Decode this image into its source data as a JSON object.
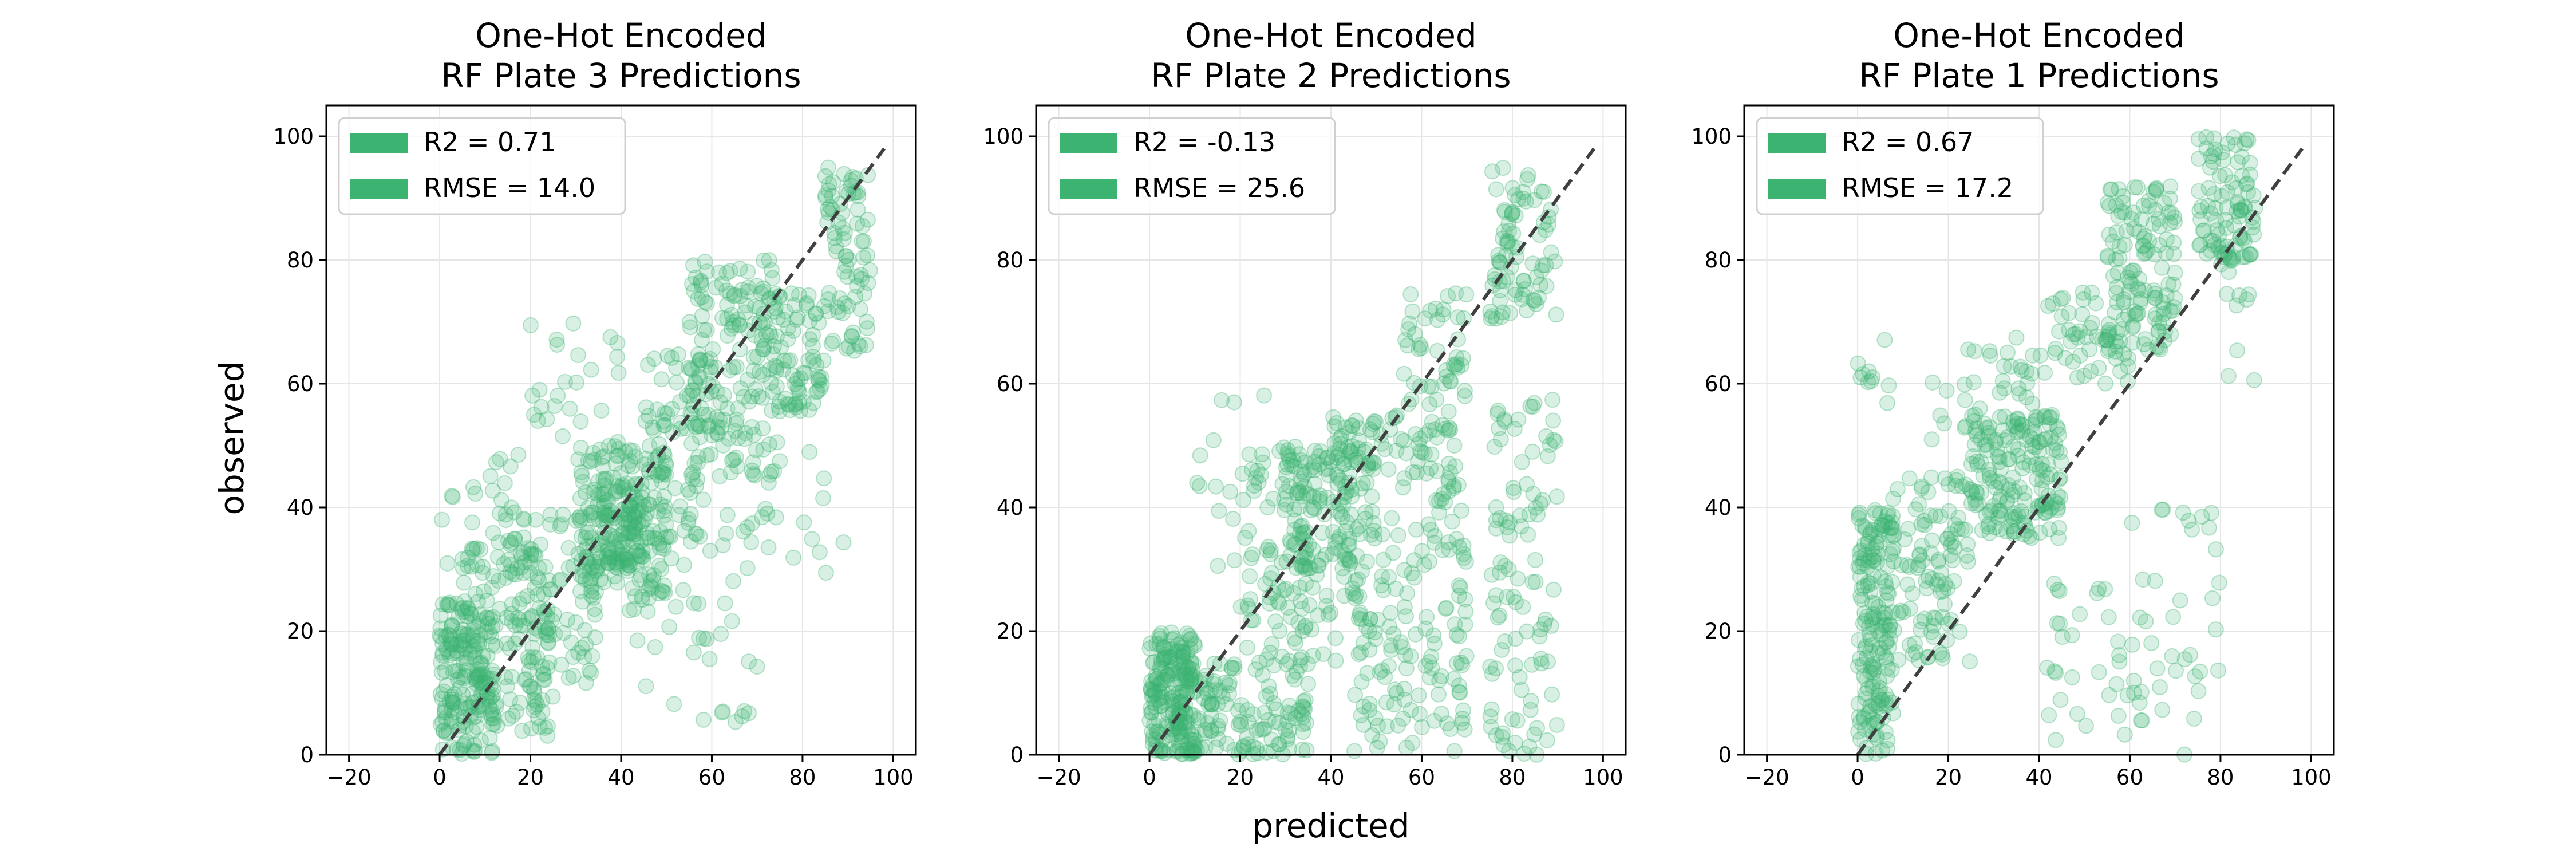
{
  "figure": {
    "xlabel": "predicted",
    "ylabel": "observed",
    "marker_color": "#3cb371",
    "identity_line_color": "#404040"
  },
  "chart_data": [
    {
      "type": "scatter",
      "title_lines": [
        "One-Hot Encoded",
        "RF Plate 3 Predictions"
      ],
      "xlim": [
        -25,
        105
      ],
      "ylim": [
        0,
        105
      ],
      "x_ticks": [
        -20,
        0,
        20,
        40,
        60,
        80,
        100
      ],
      "y_ticks": [
        0,
        20,
        40,
        60,
        80,
        100
      ],
      "grid": true,
      "legend_position": "upper-left",
      "legend": [
        "R2 = 0.71",
        "RMSE = 14.0"
      ],
      "identity_line": [
        [
          0,
          0
        ],
        [
          98,
          98
        ]
      ],
      "point_cloud": [
        {
          "x": [
            0,
            12
          ],
          "y": [
            0,
            25
          ],
          "n": 170
        },
        {
          "x": [
            5,
            25
          ],
          "y": [
            3,
            35
          ],
          "n": 120
        },
        {
          "x": [
            15,
            35
          ],
          "y": [
            10,
            40
          ],
          "n": 90
        },
        {
          "x": [
            30,
            50
          ],
          "y": [
            25,
            50
          ],
          "n": 170
        },
        {
          "x": [
            35,
            45
          ],
          "y": [
            30,
            45
          ],
          "n": 80
        },
        {
          "x": [
            45,
            60
          ],
          "y": [
            35,
            65
          ],
          "n": 80
        },
        {
          "x": [
            55,
            75
          ],
          "y": [
            45,
            80
          ],
          "n": 150
        },
        {
          "x": [
            70,
            85
          ],
          "y": [
            55,
            75
          ],
          "n": 90
        },
        {
          "x": [
            85,
            95
          ],
          "y": [
            65,
            95
          ],
          "n": 80
        },
        {
          "x": [
            0,
            20
          ],
          "y": [
            28,
            50
          ],
          "n": 40
        },
        {
          "x": [
            20,
            40
          ],
          "y": [
            50,
            70
          ],
          "n": 25
        },
        {
          "x": [
            40,
            70
          ],
          "y": [
            5,
            40
          ],
          "n": 50
        },
        {
          "x": [
            70,
            90
          ],
          "y": [
            25,
            50
          ],
          "n": 15
        }
      ]
    },
    {
      "type": "scatter",
      "title_lines": [
        "One-Hot Encoded",
        "RF Plate 2 Predictions"
      ],
      "xlim": [
        -25,
        105
      ],
      "ylim": [
        0,
        105
      ],
      "x_ticks": [
        -20,
        0,
        20,
        40,
        60,
        80,
        100
      ],
      "y_ticks": [
        0,
        20,
        40,
        60,
        80,
        100
      ],
      "grid": true,
      "legend_position": "upper-left",
      "legend": [
        "R2 = -0.13",
        "RMSE = 25.6"
      ],
      "identity_line": [
        [
          0,
          0
        ],
        [
          98,
          98
        ]
      ],
      "point_cloud": [
        {
          "x": [
            0,
            10
          ],
          "y": [
            0,
            20
          ],
          "n": 180
        },
        {
          "x": [
            5,
            35
          ],
          "y": [
            0,
            15
          ],
          "n": 150
        },
        {
          "x": [
            20,
            50
          ],
          "y": [
            15,
            50
          ],
          "n": 160
        },
        {
          "x": [
            30,
            45
          ],
          "y": [
            30,
            50
          ],
          "n": 80
        },
        {
          "x": [
            45,
            70
          ],
          "y": [
            0,
            40
          ],
          "n": 140
        },
        {
          "x": [
            55,
            70
          ],
          "y": [
            40,
            75
          ],
          "n": 90
        },
        {
          "x": [
            75,
            90
          ],
          "y": [
            0,
            60
          ],
          "n": 100
        },
        {
          "x": [
            75,
            90
          ],
          "y": [
            70,
            95
          ],
          "n": 80
        },
        {
          "x": [
            40,
            55
          ],
          "y": [
            45,
            55
          ],
          "n": 40
        },
        {
          "x": [
            10,
            30
          ],
          "y": [
            30,
            60
          ],
          "n": 20
        }
      ]
    },
    {
      "type": "scatter",
      "title_lines": [
        "One-Hot Encoded",
        "RF Plate 1 Predictions"
      ],
      "xlim": [
        -25,
        105
      ],
      "ylim": [
        0,
        105
      ],
      "x_ticks": [
        -20,
        0,
        20,
        40,
        60,
        80,
        100
      ],
      "y_ticks": [
        0,
        20,
        40,
        60,
        80,
        100
      ],
      "grid": true,
      "legend_position": "upper-left",
      "legend": [
        "R2 = 0.67",
        "RMSE = 17.2"
      ],
      "identity_line": [
        [
          0,
          0
        ],
        [
          98,
          98
        ]
      ],
      "point_cloud": [
        {
          "x": [
            0,
            8
          ],
          "y": [
            0,
            40
          ],
          "n": 170
        },
        {
          "x": [
            5,
            25
          ],
          "y": [
            15,
            45
          ],
          "n": 110
        },
        {
          "x": [
            25,
            45
          ],
          "y": [
            35,
            55
          ],
          "n": 170
        },
        {
          "x": [
            15,
            40
          ],
          "y": [
            50,
            70
          ],
          "n": 40
        },
        {
          "x": [
            40,
            60
          ],
          "y": [
            60,
            75
          ],
          "n": 50
        },
        {
          "x": [
            55,
            70
          ],
          "y": [
            65,
            92
          ],
          "n": 130
        },
        {
          "x": [
            75,
            88
          ],
          "y": [
            80,
            100
          ],
          "n": 90
        },
        {
          "x": [
            60,
            80
          ],
          "y": [
            0,
            40
          ],
          "n": 40
        },
        {
          "x": [
            40,
            60
          ],
          "y": [
            0,
            30
          ],
          "n": 30
        },
        {
          "x": [
            0,
            8
          ],
          "y": [
            55,
            70
          ],
          "n": 10
        },
        {
          "x": [
            80,
            88
          ],
          "y": [
            60,
            90
          ],
          "n": 15
        }
      ]
    }
  ]
}
